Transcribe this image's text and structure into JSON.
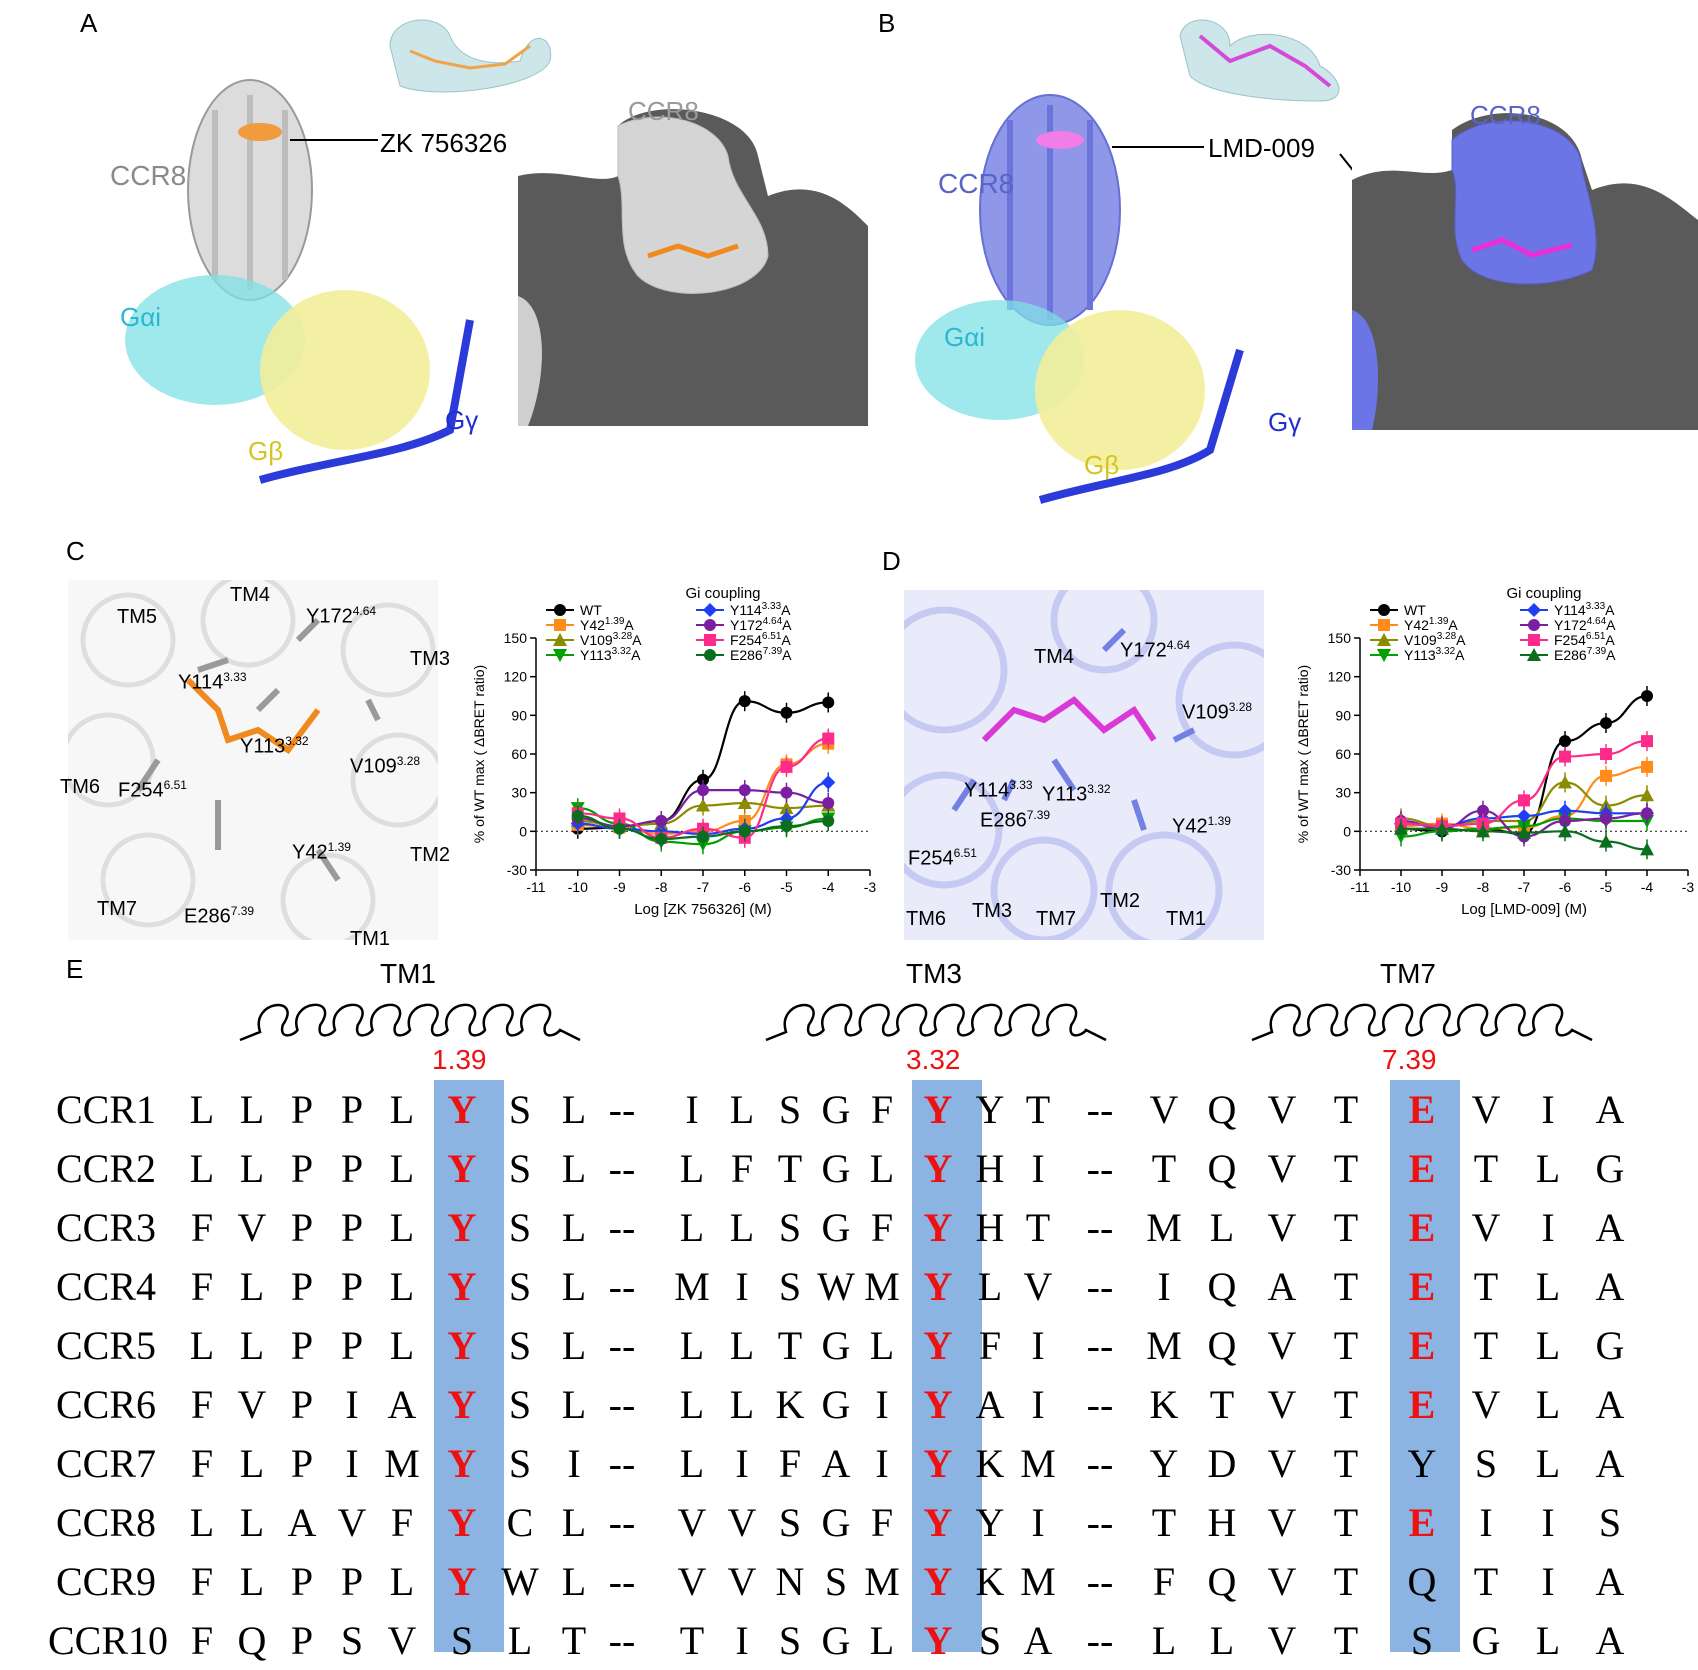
{
  "panels": {
    "A": {
      "letter": "A",
      "ccr8_label": "CCR8",
      "ligand_label": "ZK 756326",
      "surface_label": "CCR8",
      "galpha": "Gαi",
      "gbeta": "Gβ",
      "ggamma": "Gγ"
    },
    "B": {
      "letter": "B",
      "ccr8_label": "CCR8",
      "ligand_label": "LMD-009",
      "surface_label": "CCR8",
      "galpha": "Gαi",
      "gbeta": "Gβ",
      "ggamma": "Gγ"
    },
    "C": {
      "letter": "C",
      "labels": {
        "tm5": "TM5",
        "tm4": "TM4",
        "tm3": "TM3",
        "tm6": "TM6",
        "tm7": "TM7",
        "tm2": "TM2",
        "tm1": "TM1",
        "y172": "Y172",
        "y172_sup": "4.64",
        "y114": "Y114",
        "y114_sup": "3.33",
        "y113": "Y113",
        "y113_sup": "3.32",
        "v109": "V109",
        "v109_sup": "3.28",
        "f254": "F254",
        "f254_sup": "6.51",
        "y42": "Y42",
        "y42_sup": "1.39",
        "e286": "E286",
        "e286_sup": "7.39"
      }
    },
    "D": {
      "letter": "D",
      "labels": {
        "tm4": "TM4",
        "tm6": "TM6",
        "tm3": "TM3",
        "tm7": "TM7",
        "tm2": "TM2",
        "tm1": "TM1",
        "y172": "Y172",
        "y172_sup": "4.64",
        "v109": "V109",
        "v109_sup": "3.28",
        "y114": "Y114",
        "y114_sup": "3.33",
        "y113": "Y113",
        "y113_sup": "3.32",
        "e286": "E286",
        "e286_sup": "7.39",
        "f254": "F254",
        "f254_sup": "6.51",
        "y42": "Y42",
        "y42_sup": "1.39"
      }
    },
    "E": {
      "letter": "E"
    }
  },
  "chart_data": [
    {
      "type": "line",
      "title": "Gi coupling",
      "xlabel": "Log [ZK 756326] (M)",
      "ylabel": "% of WT max ( ΔBRET ratio)",
      "xlim": [
        -11,
        -3
      ],
      "ylim": [
        -30,
        150
      ],
      "xticks": [
        -11,
        -10,
        -9,
        -8,
        -7,
        -6,
        -5,
        -4,
        -3
      ],
      "yticks": [
        -30,
        0,
        30,
        60,
        90,
        120,
        150
      ],
      "x": [
        -10,
        -9,
        -8,
        -7,
        -6,
        -5,
        -4
      ],
      "series": [
        {
          "name": "WT",
          "sup": "",
          "color": "#000000",
          "marker": "circle",
          "values": [
            2,
            3,
            8,
            40,
            101,
            92,
            100
          ]
        },
        {
          "name": "Y42",
          "sup": "1.39",
          "suffix": "A",
          "color": "#ff8c1a",
          "marker": "square",
          "values": [
            5,
            3,
            -2,
            0,
            8,
            52,
            68
          ]
        },
        {
          "name": "V109",
          "sup": "3.28",
          "suffix": "A",
          "color": "#8c8c00",
          "marker": "triangle-up",
          "values": [
            8,
            4,
            6,
            20,
            22,
            18,
            20
          ]
        },
        {
          "name": "Y113",
          "sup": "3.32",
          "suffix": "A",
          "color": "#00a000",
          "marker": "triangle-down",
          "values": [
            18,
            6,
            -8,
            -10,
            0,
            3,
            10
          ]
        },
        {
          "name": "Y114",
          "sup": "3.33",
          "suffix": "A",
          "color": "#1f3ff5",
          "marker": "diamond",
          "values": [
            6,
            2,
            0,
            -2,
            2,
            10,
            38
          ]
        },
        {
          "name": "Y172",
          "sup": "4.64",
          "suffix": "A",
          "color": "#7a1fa0",
          "marker": "circle",
          "values": [
            10,
            4,
            8,
            32,
            32,
            30,
            22
          ]
        },
        {
          "name": "F254",
          "sup": "6.51",
          "suffix": "A",
          "color": "#ff2b8a",
          "marker": "square",
          "values": [
            14,
            10,
            -5,
            2,
            -5,
            50,
            72
          ]
        },
        {
          "name": "E286",
          "sup": "7.39",
          "suffix": "A",
          "color": "#0a6e1e",
          "marker": "circle",
          "values": [
            12,
            2,
            -6,
            -4,
            0,
            4,
            8
          ]
        }
      ],
      "zero_line": "dotted",
      "legend": "top"
    },
    {
      "type": "line",
      "title": "Gi coupling",
      "xlabel": "Log [LMD-009] (M)",
      "ylabel": "% of WT max ( ΔBRET ratio)",
      "xlim": [
        -11,
        -3
      ],
      "ylim": [
        -30,
        150
      ],
      "xticks": [
        -11,
        -10,
        -9,
        -8,
        -7,
        -6,
        -5,
        -4,
        -3
      ],
      "yticks": [
        -30,
        0,
        30,
        60,
        90,
        120,
        150
      ],
      "x": [
        -10,
        -9,
        -8,
        -7,
        -6,
        -5,
        -4
      ],
      "series": [
        {
          "name": "WT",
          "sup": "",
          "color": "#000000",
          "marker": "circle",
          "values": [
            2,
            0,
            2,
            -2,
            70,
            84,
            105
          ]
        },
        {
          "name": "Y42",
          "sup": "1.39",
          "suffix": "A",
          "color": "#ff8c1a",
          "marker": "square",
          "values": [
            4,
            6,
            2,
            3,
            12,
            43,
            50
          ]
        },
        {
          "name": "V109",
          "sup": "3.28",
          "suffix": "A",
          "color": "#8c8c00",
          "marker": "triangle-up",
          "values": [
            10,
            4,
            8,
            8,
            38,
            20,
            28
          ]
        },
        {
          "name": "Y113",
          "sup": "3.32",
          "suffix": "A",
          "color": "#00a000",
          "marker": "triangle-down",
          "values": [
            -4,
            0,
            2,
            4,
            10,
            8,
            8
          ]
        },
        {
          "name": "Y114",
          "sup": "3.33",
          "suffix": "A",
          "color": "#1f3ff5",
          "marker": "diamond",
          "values": [
            6,
            4,
            10,
            12,
            16,
            14,
            14
          ]
        },
        {
          "name": "Y172",
          "sup": "4.64",
          "suffix": "A",
          "color": "#7a1fa0",
          "marker": "circle",
          "values": [
            8,
            2,
            16,
            -4,
            8,
            10,
            14
          ]
        },
        {
          "name": "F254",
          "sup": "6.51",
          "suffix": "A",
          "color": "#ff2b8a",
          "marker": "square",
          "values": [
            6,
            4,
            6,
            24,
            58,
            60,
            70
          ]
        },
        {
          "name": "E286",
          "sup": "7.39",
          "suffix": "A",
          "color": "#0a6e1e",
          "marker": "triangle-up",
          "values": [
            2,
            2,
            0,
            -1,
            0,
            -8,
            -14
          ]
        }
      ],
      "zero_line": "dotted",
      "legend": "top"
    }
  ],
  "alignment": {
    "tm_titles": [
      "TM1",
      "TM3",
      "TM7"
    ],
    "positions": [
      "1.39",
      "3.32",
      "7.39"
    ],
    "separator": "--",
    "rows": [
      {
        "name": "CCR1",
        "tm1": [
          "L",
          "L",
          "P",
          "P",
          "L",
          "Y",
          "S",
          "L"
        ],
        "tm3": [
          "I",
          "L",
          "S",
          "G",
          "F",
          "Y",
          "Y",
          "T"
        ],
        "tm7": [
          "V",
          "Q",
          "V",
          "T",
          "E",
          "V",
          "I",
          "A"
        ]
      },
      {
        "name": "CCR2",
        "tm1": [
          "L",
          "L",
          "P",
          "P",
          "L",
          "Y",
          "S",
          "L"
        ],
        "tm3": [
          "L",
          "F",
          "T",
          "G",
          "L",
          "Y",
          "H",
          "I"
        ],
        "tm7": [
          "T",
          "Q",
          "V",
          "T",
          "E",
          "T",
          "L",
          "G"
        ]
      },
      {
        "name": "CCR3",
        "tm1": [
          "F",
          "V",
          "P",
          "P",
          "L",
          "Y",
          "S",
          "L"
        ],
        "tm3": [
          "L",
          "L",
          "S",
          "G",
          "F",
          "Y",
          "H",
          "T"
        ],
        "tm7": [
          "M",
          "L",
          "V",
          "T",
          "E",
          "V",
          "I",
          "A"
        ]
      },
      {
        "name": "CCR4",
        "tm1": [
          "F",
          "L",
          "P",
          "P",
          "L",
          "Y",
          "S",
          "L"
        ],
        "tm3": [
          "M",
          "I",
          "S",
          "W",
          "M",
          "Y",
          "L",
          "V"
        ],
        "tm7": [
          "I",
          "Q",
          "A",
          "T",
          "E",
          "T",
          "L",
          "A"
        ]
      },
      {
        "name": "CCR5",
        "tm1": [
          "L",
          "L",
          "P",
          "P",
          "L",
          "Y",
          "S",
          "L"
        ],
        "tm3": [
          "L",
          "L",
          "T",
          "G",
          "L",
          "Y",
          "F",
          "I"
        ],
        "tm7": [
          "M",
          "Q",
          "V",
          "T",
          "E",
          "T",
          "L",
          "G"
        ]
      },
      {
        "name": "CCR6",
        "tm1": [
          "F",
          "V",
          "P",
          "I",
          "A",
          "Y",
          "S",
          "L"
        ],
        "tm3": [
          "L",
          "L",
          "K",
          "G",
          "I",
          "Y",
          "A",
          "I"
        ],
        "tm7": [
          "K",
          "T",
          "V",
          "T",
          "E",
          "V",
          "L",
          "A"
        ]
      },
      {
        "name": "CCR7",
        "tm1": [
          "F",
          "L",
          "P",
          "I",
          "M",
          "Y",
          "S",
          "I"
        ],
        "tm3": [
          "L",
          "I",
          "F",
          "A",
          "I",
          "Y",
          "K",
          "M"
        ],
        "tm7": [
          "Y",
          "D",
          "V",
          "T",
          "Y",
          "S",
          "L",
          "A"
        ]
      },
      {
        "name": "CCR8",
        "tm1": [
          "L",
          "L",
          "A",
          "V",
          "F",
          "Y",
          "C",
          "L"
        ],
        "tm3": [
          "V",
          "V",
          "S",
          "G",
          "F",
          "Y",
          "Y",
          "I"
        ],
        "tm7": [
          "T",
          "H",
          "V",
          "T",
          "E",
          "I",
          "I",
          "S"
        ]
      },
      {
        "name": "CCR9",
        "tm1": [
          "F",
          "L",
          "P",
          "P",
          "L",
          "Y",
          "W",
          "L"
        ],
        "tm3": [
          "V",
          "V",
          "N",
          "S",
          "M",
          "Y",
          "K",
          "M"
        ],
        "tm7": [
          "F",
          "Q",
          "V",
          "T",
          "Q",
          "T",
          "I",
          "A"
        ]
      },
      {
        "name": "CCR10",
        "tm1": [
          "F",
          "Q",
          "P",
          "S",
          "V",
          "S",
          "L",
          "T"
        ],
        "tm3": [
          "T",
          "I",
          "S",
          "G",
          "L",
          "Y",
          "S",
          "A"
        ],
        "tm7": [
          "L",
          "L",
          "V",
          "T",
          "S",
          "G",
          "L",
          "A"
        ]
      }
    ],
    "highlight_red": {
      "tm1": [
        true,
        true,
        true,
        true,
        true,
        true,
        true,
        true,
        true,
        false
      ],
      "tm3": [
        true,
        true,
        true,
        true,
        true,
        true,
        true,
        true,
        true,
        true
      ],
      "tm7": [
        true,
        true,
        true,
        true,
        true,
        true,
        false,
        true,
        false,
        false
      ]
    },
    "colors": {
      "highlight_box": "#8cb4e2",
      "highlight_text": "#ee1111"
    }
  }
}
